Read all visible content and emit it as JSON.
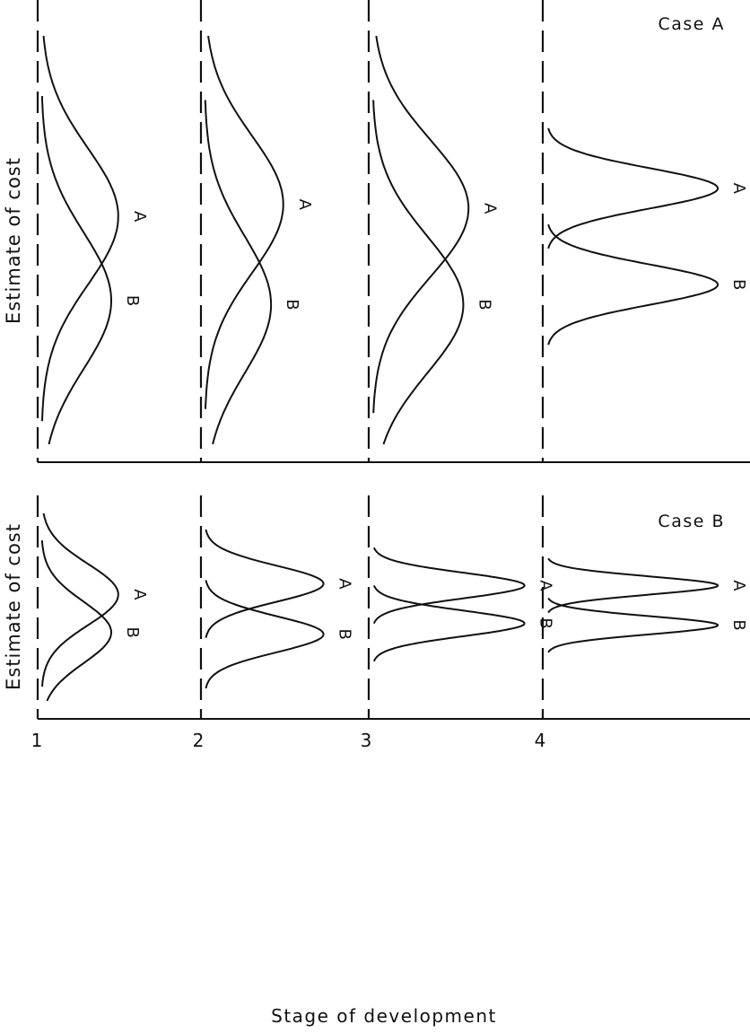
{
  "figure": {
    "ylabel": "Estimate of cost",
    "xlabel": "Stage of development",
    "stages": [
      "1",
      "2",
      "3",
      "4"
    ],
    "colors": {
      "ink": "#111111",
      "background": "#ffffff"
    },
    "panels": [
      {
        "case_label": "Case A",
        "stages": [
          {
            "stage": "1",
            "distributions": [
              {
                "name": "A",
                "mean": 0.55,
                "spread": 0.17,
                "peak": 0.44
              },
              {
                "name": "B",
                "mean": 0.34,
                "spread": 0.17,
                "peak": 0.4
              }
            ]
          },
          {
            "stage": "2",
            "distributions": [
              {
                "name": "A",
                "mean": 0.58,
                "spread": 0.17,
                "peak": 0.45
              },
              {
                "name": "B",
                "mean": 0.33,
                "spread": 0.17,
                "peak": 0.38
              }
            ]
          },
          {
            "stage": "3",
            "distributions": [
              {
                "name": "A",
                "mean": 0.57,
                "spread": 0.17,
                "peak": 0.55
              },
              {
                "name": "B",
                "mean": 0.33,
                "spread": 0.17,
                "peak": 0.52
              }
            ]
          },
          {
            "stage": "4",
            "distributions": [
              {
                "name": "A",
                "mean": 0.62,
                "spread": 0.05,
                "peak": 0.98
              },
              {
                "name": "B",
                "mean": 0.38,
                "spread": 0.05,
                "peak": 0.98
              }
            ]
          }
        ]
      },
      {
        "case_label": "Case B",
        "stages": [
          {
            "stage": "1",
            "distributions": [
              {
                "name": "A",
                "mean": 0.55,
                "spread": 0.17,
                "peak": 0.44
              },
              {
                "name": "B",
                "mean": 0.34,
                "spread": 0.17,
                "peak": 0.4
              }
            ]
          },
          {
            "stage": "2",
            "distributions": [
              {
                "name": "A",
                "mean": 0.61,
                "spread": 0.1,
                "peak": 0.68
              },
              {
                "name": "B",
                "mean": 0.33,
                "spread": 0.1,
                "peak": 0.68
              }
            ]
          },
          {
            "stage": "3",
            "distributions": [
              {
                "name": "A",
                "mean": 0.6,
                "spread": 0.07,
                "peak": 0.87
              },
              {
                "name": "B",
                "mean": 0.39,
                "spread": 0.07,
                "peak": 0.87
              }
            ]
          },
          {
            "stage": "4",
            "distributions": [
              {
                "name": "A",
                "mean": 0.6,
                "spread": 0.05,
                "peak": 0.98
              },
              {
                "name": "B",
                "mean": 0.38,
                "spread": 0.05,
                "peak": 0.98
              }
            ]
          }
        ]
      }
    ]
  }
}
